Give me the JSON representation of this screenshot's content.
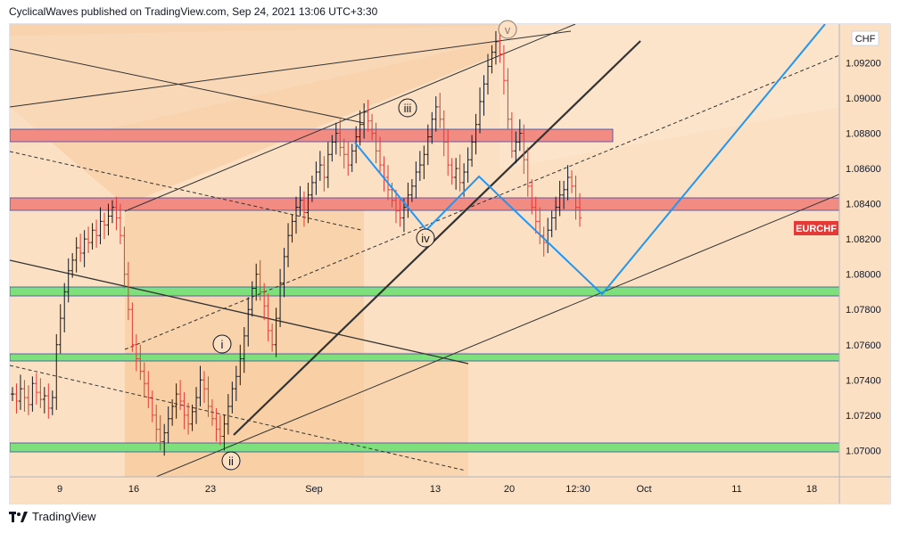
{
  "header": {
    "publish_line": "CyclicalWaves published on TradingView.com, Sep 24, 2021 13:06 UTC+3:30"
  },
  "footer": {
    "brand": "TradingView"
  },
  "chart_data": {
    "type": "candlestick",
    "symbol_tag": "EURCHF",
    "currency": "CHF",
    "ylim": [
      1.0685,
      1.0942
    ],
    "y_ticks": [
      "1.09200",
      "1.09000",
      "1.08800",
      "1.08600",
      "1.08400",
      "1.08200",
      "1.08000",
      "1.07800",
      "1.07600",
      "1.07400",
      "1.07200",
      "1.07000"
    ],
    "x_ticks": [
      "9",
      "16",
      "23",
      "Sep",
      "13",
      "20",
      "12:30",
      "Oct",
      "11",
      "18"
    ],
    "last_price_label": "EURCHF",
    "wave_labels": [
      "i",
      "ii",
      "iii",
      "iv",
      "v"
    ],
    "zones": [
      {
        "type": "resistance",
        "color": "#f28b82",
        "range": [
          1.088,
          1.0887
        ]
      },
      {
        "type": "resistance",
        "color": "#f28b82",
        "range": [
          1.084,
          1.0848
        ]
      },
      {
        "type": "support",
        "color": "#7ee07a",
        "range": [
          1.0792,
          1.0797
        ]
      },
      {
        "type": "support",
        "color": "#7ee07a",
        "range": [
          1.0753,
          1.0757
        ]
      },
      {
        "type": "support",
        "color": "#7ee07a",
        "range": [
          1.0698,
          1.0702
        ]
      }
    ],
    "projection": {
      "color": "#2196f3",
      "points": [
        [
          1.088
        ],
        [
          1.0828
        ],
        [
          1.086
        ],
        [
          1.079
        ],
        [
          1.093
        ]
      ]
    },
    "candle_closes": [
      1.0732,
      1.0728,
      1.0735,
      1.073,
      1.0726,
      1.0738,
      1.0733,
      1.0729,
      1.0731,
      1.0724,
      1.073,
      1.076,
      1.0775,
      1.079,
      1.0802,
      1.0808,
      1.0815,
      1.0812,
      1.082,
      1.0818,
      1.0825,
      1.0822,
      1.083,
      1.0828,
      1.0833,
      1.0838,
      1.0832,
      1.0822,
      1.08,
      1.078,
      1.076,
      1.0752,
      1.0745,
      1.0738,
      1.073,
      1.072,
      1.0712,
      1.0705,
      1.071,
      1.0718,
      1.0725,
      1.0732,
      1.0728,
      1.072,
      1.0715,
      1.0722,
      1.073,
      1.074,
      1.0735,
      1.0725,
      1.0718,
      1.0712,
      1.0708,
      1.0715,
      1.0725,
      1.0735,
      1.0742,
      1.0752,
      1.0765,
      1.078,
      1.0792,
      1.08,
      1.079,
      1.0782,
      1.0768,
      1.076,
      1.0775,
      1.0795,
      1.081,
      1.0822,
      1.083,
      1.0838,
      1.0842,
      1.0835,
      1.0845,
      1.0852,
      1.0858,
      1.0862,
      1.0855,
      1.0868,
      1.0875,
      1.088,
      1.0872,
      1.0868,
      1.0862,
      1.087,
      1.0878,
      1.0885,
      1.0892,
      1.0887,
      1.088,
      1.087,
      1.0862,
      1.0855,
      1.0848,
      1.0842,
      1.0836,
      1.0832,
      1.0838,
      1.0845,
      1.085,
      1.0858,
      1.0862,
      1.0868,
      1.0878,
      1.0888,
      1.0895,
      1.0888,
      1.0875,
      1.0862,
      1.0855,
      1.086,
      1.0852,
      1.0858,
      1.0865,
      1.0875,
      1.0885,
      1.0898,
      1.0908,
      1.0918,
      1.0926,
      1.0932,
      1.0925,
      1.091,
      1.0888,
      1.087,
      1.0875,
      1.088,
      1.0865,
      1.085,
      1.0838,
      1.083,
      1.0822,
      1.0818,
      1.0825,
      1.0832,
      1.0838,
      1.0845,
      1.0848,
      1.0855,
      1.085,
      1.0838,
      1.0832
    ]
  }
}
